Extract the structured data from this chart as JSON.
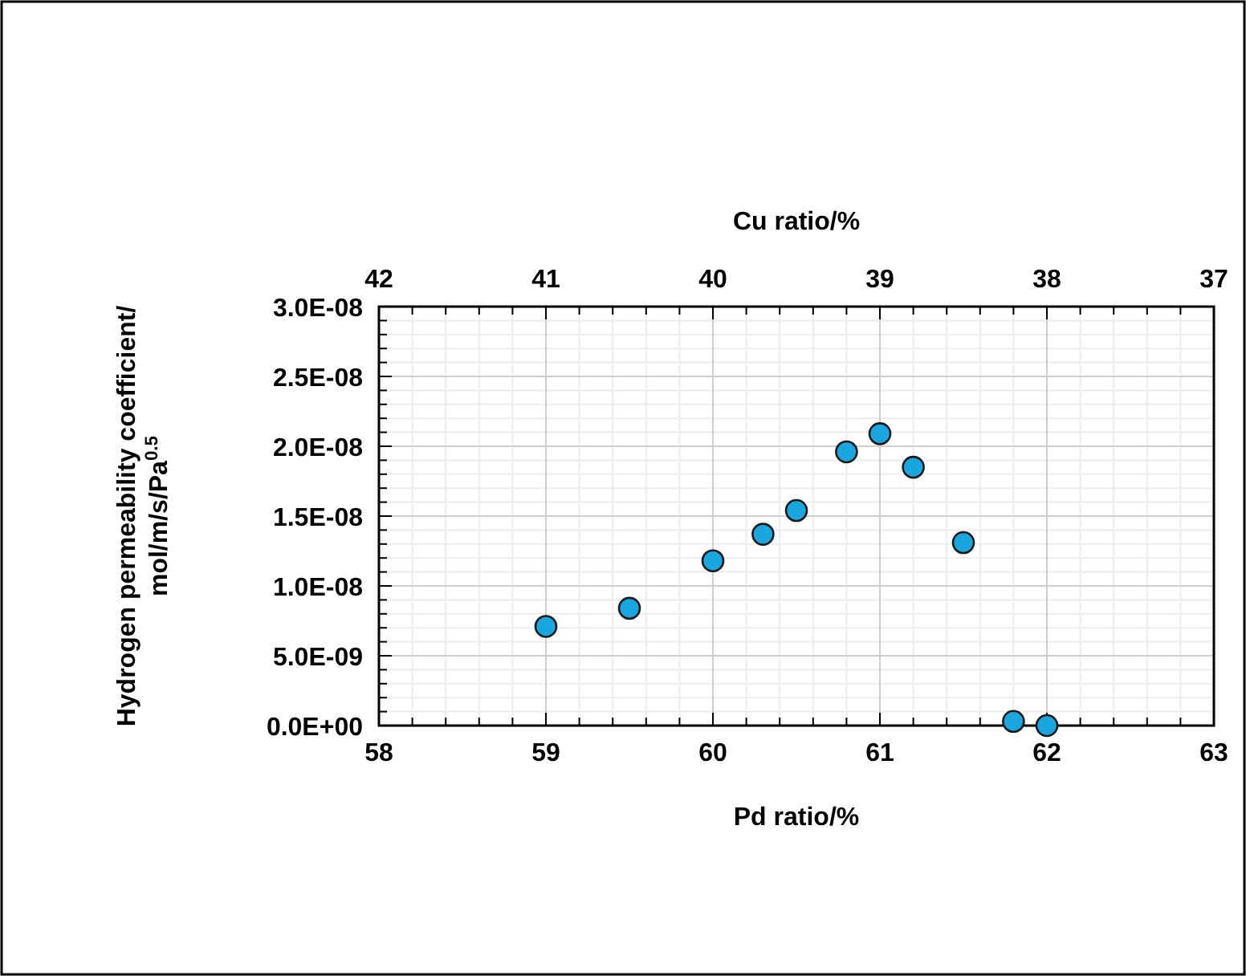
{
  "chart_data": {
    "type": "scatter",
    "xlabel": "Pd ratio/%",
    "x2label": "Cu ratio/%",
    "ylabel": "Hydrogen permeability coefficient/\nmol/m/s/Pa$^{0.5}$",
    "x": [
      59,
      59.5,
      60,
      60.3,
      60.5,
      60.8,
      61,
      61.2,
      61.5,
      61.8,
      62
    ],
    "series": [
      {
        "color": "#1aa7e0",
        "values": [
          7.1e-09,
          8.4e-09,
          1.18e-08,
          1.37e-08,
          1.54e-08,
          1.96e-08,
          2.09e-08,
          1.85e-08,
          1.31e-08,
          3e-10,
          0
        ]
      }
    ],
    "xlim": [
      58,
      63
    ],
    "xticks": [
      58,
      59,
      60,
      61,
      62,
      63
    ],
    "x2lim": [
      42,
      37
    ],
    "x2ticks": [
      42,
      41,
      40,
      39,
      38,
      37
    ],
    "ylim": [
      0,
      3e-08
    ],
    "yticks": [
      {
        "value": 0,
        "label": "0.0E+00"
      },
      {
        "value": 5e-09,
        "label": "5.0E-09"
      },
      {
        "value": 1e-08,
        "label": "1.0E-08"
      },
      {
        "value": 1.5e-08,
        "label": "1.5E-08"
      },
      {
        "value": 2e-08,
        "label": "2.0E-08"
      },
      {
        "value": 2.5e-08,
        "label": "2.5E-08"
      },
      {
        "value": 3e-08,
        "label": "3.0E-08"
      }
    ],
    "grid": true,
    "marker": "circle"
  }
}
